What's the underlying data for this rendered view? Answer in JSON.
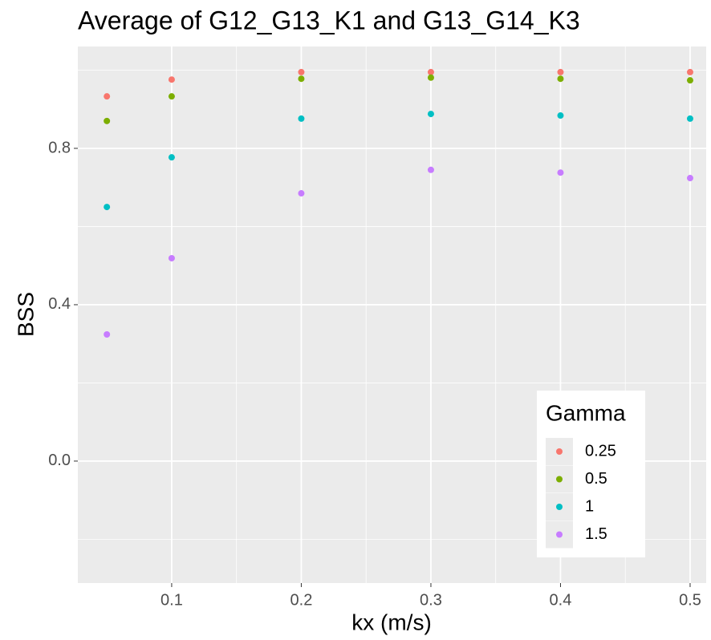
{
  "chart_data": {
    "type": "scatter",
    "title": "Average of G12_G13_K1 and G13_G14_K3",
    "x_label": "kx (m/s)",
    "y_label": "BSS",
    "x": [
      0.05,
      0.1,
      0.2,
      0.3,
      0.4,
      0.5
    ],
    "series": [
      {
        "name": "0.25",
        "color": "#F8766D",
        "values": [
          0.933,
          0.976,
          0.995,
          0.995,
          0.995,
          0.995
        ]
      },
      {
        "name": "0.5",
        "color": "#7CAE00",
        "values": [
          0.87,
          0.933,
          0.978,
          0.981,
          0.978,
          0.974
        ]
      },
      {
        "name": "1",
        "color": "#00BFC4",
        "values": [
          0.65,
          0.777,
          0.876,
          0.888,
          0.884,
          0.876
        ]
      },
      {
        "name": "1.5",
        "color": "#C77CFF",
        "values": [
          0.324,
          0.519,
          0.685,
          0.745,
          0.738,
          0.724
        ]
      }
    ],
    "legend_title": "Gamma",
    "legend": "bottom-right",
    "xlim": [
      0.0276,
      0.5124
    ],
    "ylim": [
      -0.312,
      1.0605
    ],
    "xticks": [
      0.1,
      0.2,
      0.3,
      0.4,
      0.5
    ],
    "yticks": [
      {
        "value": 0,
        "label": "0.0"
      },
      0.4,
      0.8
    ],
    "xminor": [
      0.15,
      0.25,
      0.35,
      0.45
    ],
    "yminor": [
      -0.2,
      0.2,
      0.6,
      1
    ],
    "grid": true
  }
}
